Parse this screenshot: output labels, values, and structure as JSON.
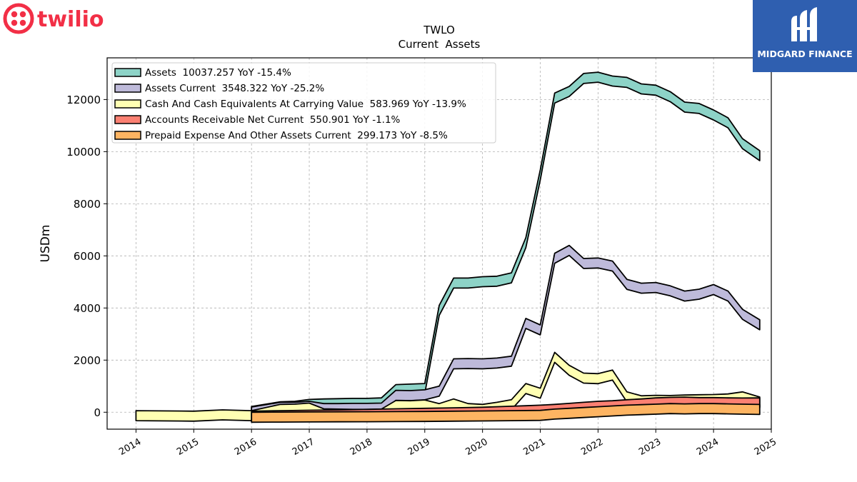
{
  "brand": {
    "left_logo_text": "twilio",
    "left_logo_color": "#f22f46",
    "right_logo_text": "MIDGARD FINANCE",
    "right_logo_bg": "#2f5fb0"
  },
  "chart_data": {
    "type": "area",
    "title": "TWLO",
    "subtitle": "Current  Assets",
    "ylabel": "USDm",
    "xlabel": "",
    "xlim": [
      2013.5,
      2025.0
    ],
    "ylim": [
      -650,
      13600
    ],
    "yticks": [
      0,
      2000,
      4000,
      6000,
      8000,
      10000,
      12000
    ],
    "xticks": [
      "2014",
      "2015",
      "2016",
      "2017",
      "2018",
      "2019",
      "2020",
      "2021",
      "2022",
      "2023",
      "2024",
      "2025"
    ],
    "grid": true,
    "legend_position": "top-left",
    "series": [
      {
        "name": "Assets  10037.257 YoY -15.4%",
        "color": "#8dd3c7",
        "x": [
          2016.0,
          2016.5,
          2016.75,
          2017.0,
          2017.25,
          2017.5,
          2017.75,
          2018.0,
          2018.25,
          2018.5,
          2018.75,
          2019.0,
          2019.25,
          2019.5,
          2019.75,
          2020.0,
          2020.25,
          2020.5,
          2020.75,
          2021.0,
          2021.25,
          2021.5,
          2021.75,
          2022.0,
          2022.25,
          2022.5,
          2022.75,
          2023.0,
          2023.25,
          2023.5,
          2023.75,
          2024.0,
          2024.25,
          2024.5,
          2024.8
        ],
        "values": [
          220,
          400,
          420,
          490,
          510,
          520,
          530,
          530,
          550,
          1060,
          1080,
          1100,
          4100,
          5150,
          5150,
          5200,
          5220,
          5350,
          6700,
          9300,
          12250,
          12500,
          13000,
          13050,
          12900,
          12850,
          12600,
          12550,
          12300,
          11900,
          11850,
          11600,
          11300,
          10500,
          10037
        ]
      },
      {
        "name": "Assets Current  3548.322 YoY -25.2%",
        "color": "#bebada",
        "x": [
          2016.0,
          2016.5,
          2016.75,
          2017.0,
          2017.25,
          2017.5,
          2017.75,
          2018.0,
          2018.25,
          2018.5,
          2018.75,
          2019.0,
          2019.25,
          2019.5,
          2019.75,
          2020.0,
          2020.25,
          2020.5,
          2020.75,
          2021.0,
          2021.25,
          2021.5,
          2021.75,
          2022.0,
          2022.25,
          2022.5,
          2022.75,
          2023.0,
          2023.25,
          2023.5,
          2023.75,
          2024.0,
          2024.25,
          2024.5,
          2024.8
        ],
        "values": [
          200,
          380,
          380,
          420,
          330,
          330,
          340,
          340,
          350,
          840,
          830,
          860,
          1000,
          2050,
          2060,
          2050,
          2080,
          2150,
          3600,
          3350,
          6100,
          6400,
          5900,
          5920,
          5800,
          5100,
          4950,
          4980,
          4850,
          4650,
          4720,
          4900,
          4650,
          3950,
          3548
        ]
      },
      {
        "name": "Cash And Cash Equivalents At Carrying Value  583.969 YoY -13.9%",
        "color": "#ffffb3",
        "x": [
          2014.0,
          2015.0,
          2015.5,
          2016.0,
          2016.5,
          2016.75,
          2017.0,
          2017.25,
          2017.5,
          2017.75,
          2018.0,
          2018.25,
          2018.5,
          2018.75,
          2019.0,
          2019.25,
          2019.5,
          2019.75,
          2020.0,
          2020.25,
          2020.5,
          2020.75,
          2021.0,
          2021.25,
          2021.5,
          2021.75,
          2022.0,
          2022.25,
          2022.5,
          2022.75,
          2023.0,
          2023.25,
          2023.5,
          2023.75,
          2024.0,
          2024.25,
          2024.5,
          2024.8
        ],
        "values": [
          60,
          40,
          90,
          60,
          300,
          310,
          350,
          130,
          120,
          110,
          110,
          120,
          450,
          440,
          470,
          330,
          510,
          330,
          300,
          380,
          480,
          1100,
          920,
          2300,
          1800,
          1500,
          1480,
          1620,
          780,
          630,
          650,
          640,
          660,
          670,
          680,
          700,
          780,
          584
        ]
      },
      {
        "name": "Accounts Receivable Net Current  550.901 YoY -1.1%",
        "color": "#fb8072",
        "x": [
          2016.0,
          2016.5,
          2017.0,
          2017.5,
          2018.0,
          2018.5,
          2019.0,
          2019.5,
          2020.0,
          2020.5,
          2020.75,
          2021.0,
          2021.25,
          2021.5,
          2021.75,
          2022.0,
          2022.25,
          2022.5,
          2022.75,
          2023.0,
          2023.25,
          2023.5,
          2023.75,
          2024.0,
          2024.25,
          2024.5,
          2024.8
        ],
        "values": [
          40,
          60,
          75,
          90,
          110,
          130,
          150,
          170,
          190,
          230,
          250,
          270,
          300,
          340,
          380,
          420,
          440,
          480,
          510,
          550,
          570,
          580,
          560,
          560,
          550,
          545,
          551
        ]
      },
      {
        "name": "Prepaid Expense And Other Assets Current  299.173 YoY -8.5%",
        "color": "#fdb462",
        "x": [
          2016.0,
          2016.5,
          2017.0,
          2017.5,
          2018.0,
          2018.5,
          2019.0,
          2019.5,
          2020.0,
          2020.5,
          2021.0,
          2021.25,
          2021.5,
          2021.75,
          2022.0,
          2022.25,
          2022.5,
          2022.75,
          2023.0,
          2023.25,
          2023.5,
          2023.75,
          2024.0,
          2024.25,
          2024.5,
          2024.8
        ],
        "values": [
          0,
          5,
          10,
          15,
          20,
          25,
          30,
          40,
          50,
          60,
          70,
          120,
          150,
          180,
          210,
          240,
          270,
          290,
          310,
          330,
          320,
          330,
          330,
          320,
          310,
          299
        ]
      }
    ]
  }
}
